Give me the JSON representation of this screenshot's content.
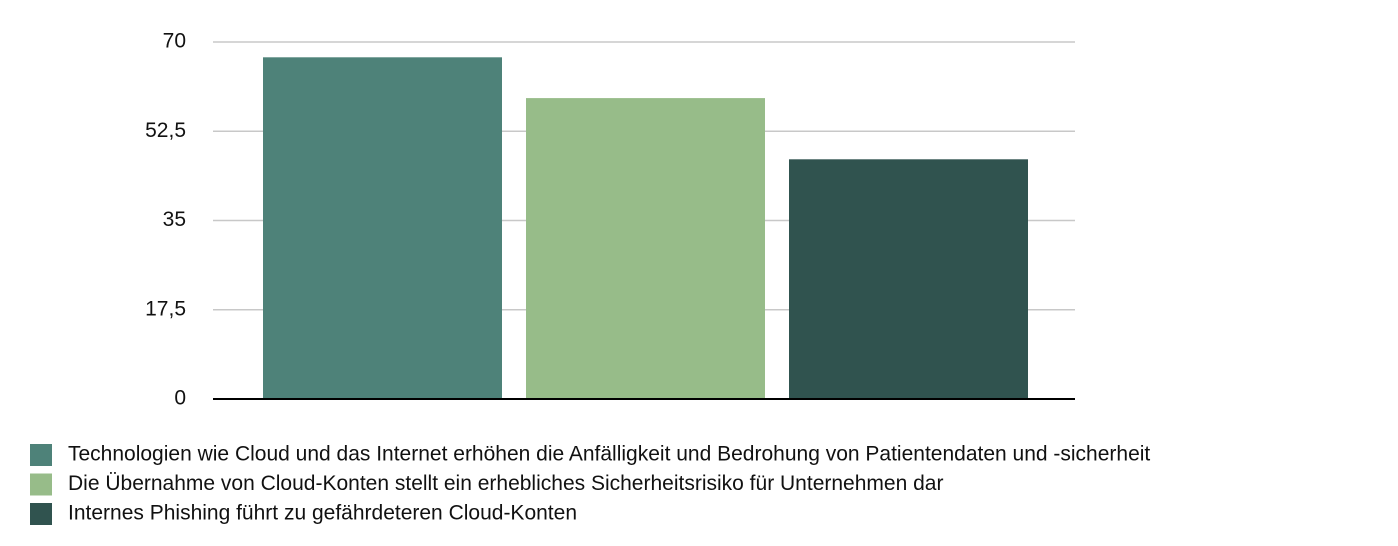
{
  "chart_data": {
    "type": "bar",
    "categories": [
      null
    ],
    "series": [
      {
        "name": "Technologien wie Cloud und das Internet erhöhen die Anfälligkeit und Bedrohung von Patientendaten und -sicherheit",
        "color": "#4e8279",
        "values": [
          67
        ]
      },
      {
        "name": "Die Übernahme von Cloud-Konten stellt ein erhebliches Sicherheitsrisiko für Unternehmen dar",
        "color": "#97bc89",
        "values": [
          59
        ]
      },
      {
        "name": "Internes Phishing führt zu gefährdeteren Cloud-Konten",
        "color": "#30534f",
        "values": [
          47
        ]
      }
    ],
    "ylim": [
      0,
      70
    ],
    "yticks": [
      0,
      {
        "value": 17.5,
        "label": "17,5"
      },
      35,
      {
        "value": 52.5,
        "label": "52,5"
      },
      70
    ],
    "grid": true,
    "legend": "bottom"
  }
}
